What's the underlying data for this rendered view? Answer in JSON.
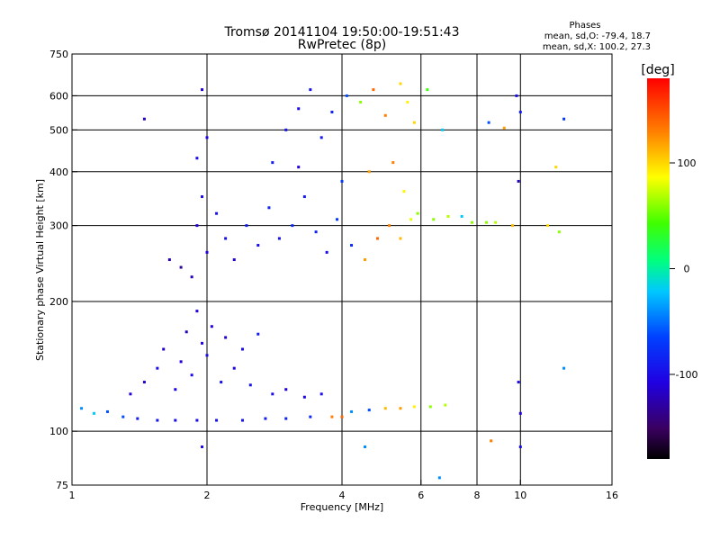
{
  "chart_data": {
    "type": "scatter",
    "title": "Tromsø 20141104 19:50:00-19:51:43",
    "subtitle": "RwPretec (8p)",
    "legend_title": "Phases",
    "legend_lines": [
      "mean, sd,O: -79.4, 18.7",
      "mean, sd,X: 100.2, 27.3"
    ],
    "xlabel": "Frequency [MHz]",
    "ylabel": "Stationary phase Virtual Height [km]",
    "x_scale": "log",
    "y_scale": "log",
    "xlim": [
      1,
      16
    ],
    "ylim": [
      75,
      750
    ],
    "x_ticks": [
      1,
      2,
      4,
      6,
      8,
      10,
      16
    ],
    "x_tick_labels": [
      "1",
      "2",
      "4",
      "6",
      "8",
      "10",
      "16"
    ],
    "x_gridlines": [
      2,
      4,
      6,
      8,
      10
    ],
    "y_ticks": [
      75,
      100,
      200,
      300,
      400,
      500,
      600,
      750
    ],
    "y_tick_labels": [
      "75",
      "100",
      "200",
      "300",
      "400",
      "500",
      "600",
      "750"
    ],
    "y_gridlines": [
      100,
      200,
      300,
      400,
      500,
      600
    ],
    "grid": true,
    "colorbar": {
      "label": "[deg]",
      "range": [
        -180,
        180
      ],
      "ticks": [
        100,
        0,
        -100
      ],
      "tick_labels": [
        "100",
        "0",
        "-100"
      ]
    },
    "series": [
      {
        "points": [
          {
            "x": 1.05,
            "y": 113,
            "p": -40
          },
          {
            "x": 1.12,
            "y": 110,
            "p": -20
          },
          {
            "x": 1.2,
            "y": 111,
            "p": -60
          },
          {
            "x": 1.3,
            "y": 108,
            "p": -60
          },
          {
            "x": 1.4,
            "y": 107,
            "p": -90
          },
          {
            "x": 1.55,
            "y": 106,
            "p": -95
          },
          {
            "x": 1.7,
            "y": 106,
            "p": -100
          },
          {
            "x": 1.9,
            "y": 106,
            "p": -100
          },
          {
            "x": 2.1,
            "y": 106,
            "p": -95
          },
          {
            "x": 2.4,
            "y": 106,
            "p": -95
          },
          {
            "x": 2.7,
            "y": 107,
            "p": -90
          },
          {
            "x": 3.0,
            "y": 107,
            "p": -85
          },
          {
            "x": 3.4,
            "y": 108,
            "p": -80
          },
          {
            "x": 3.8,
            "y": 108,
            "p": 130
          },
          {
            "x": 4.0,
            "y": 108,
            "p": 140
          },
          {
            "x": 4.2,
            "y": 111,
            "p": -40
          },
          {
            "x": 4.6,
            "y": 112,
            "p": -60
          },
          {
            "x": 5.0,
            "y": 113,
            "p": 110
          },
          {
            "x": 5.4,
            "y": 113,
            "p": 120
          },
          {
            "x": 5.8,
            "y": 114,
            "p": 90
          },
          {
            "x": 6.3,
            "y": 114,
            "p": 60
          },
          {
            "x": 6.8,
            "y": 115,
            "p": 70
          },
          {
            "x": 1.35,
            "y": 122,
            "p": -110
          },
          {
            "x": 1.45,
            "y": 130,
            "p": -115
          },
          {
            "x": 1.55,
            "y": 140,
            "p": -100
          },
          {
            "x": 1.6,
            "y": 155,
            "p": -115
          },
          {
            "x": 1.7,
            "y": 125,
            "p": -105
          },
          {
            "x": 1.75,
            "y": 145,
            "p": -110
          },
          {
            "x": 1.8,
            "y": 170,
            "p": -120
          },
          {
            "x": 1.85,
            "y": 135,
            "p": -100
          },
          {
            "x": 1.9,
            "y": 190,
            "p": -110
          },
          {
            "x": 1.95,
            "y": 160,
            "p": -105
          },
          {
            "x": 2.0,
            "y": 150,
            "p": -100
          },
          {
            "x": 2.05,
            "y": 175,
            "p": -110
          },
          {
            "x": 2.15,
            "y": 130,
            "p": -95
          },
          {
            "x": 2.2,
            "y": 165,
            "p": -115
          },
          {
            "x": 2.3,
            "y": 140,
            "p": -105
          },
          {
            "x": 2.4,
            "y": 155,
            "p": -100
          },
          {
            "x": 2.5,
            "y": 128,
            "p": -95
          },
          {
            "x": 2.6,
            "y": 168,
            "p": -90
          },
          {
            "x": 2.8,
            "y": 122,
            "p": -100
          },
          {
            "x": 3.0,
            "y": 125,
            "p": -110
          },
          {
            "x": 3.3,
            "y": 120,
            "p": -105
          },
          {
            "x": 3.6,
            "y": 122,
            "p": -100
          },
          {
            "x": 1.65,
            "y": 250,
            "p": -125
          },
          {
            "x": 1.75,
            "y": 240,
            "p": -130
          },
          {
            "x": 1.85,
            "y": 228,
            "p": -120
          },
          {
            "x": 1.9,
            "y": 300,
            "p": -110
          },
          {
            "x": 1.95,
            "y": 350,
            "p": -100
          },
          {
            "x": 2.0,
            "y": 260,
            "p": -110
          },
          {
            "x": 2.1,
            "y": 320,
            "p": -95
          },
          {
            "x": 2.2,
            "y": 280,
            "p": -100
          },
          {
            "x": 2.3,
            "y": 250,
            "p": -115
          },
          {
            "x": 2.45,
            "y": 300,
            "p": -90
          },
          {
            "x": 2.6,
            "y": 270,
            "p": -100
          },
          {
            "x": 2.75,
            "y": 330,
            "p": -85
          },
          {
            "x": 2.9,
            "y": 280,
            "p": -95
          },
          {
            "x": 3.1,
            "y": 300,
            "p": -80
          },
          {
            "x": 3.3,
            "y": 350,
            "p": -90
          },
          {
            "x": 3.5,
            "y": 290,
            "p": -85
          },
          {
            "x": 3.7,
            "y": 260,
            "p": -100
          },
          {
            "x": 3.9,
            "y": 310,
            "p": -70
          },
          {
            "x": 4.2,
            "y": 270,
            "p": -80
          },
          {
            "x": 4.5,
            "y": 250,
            "p": 120
          },
          {
            "x": 4.8,
            "y": 280,
            "p": 140
          },
          {
            "x": 5.1,
            "y": 300,
            "p": 130
          },
          {
            "x": 5.4,
            "y": 280,
            "p": 110
          },
          {
            "x": 5.7,
            "y": 310,
            "p": 80
          },
          {
            "x": 5.9,
            "y": 320,
            "p": 60
          },
          {
            "x": 6.4,
            "y": 310,
            "p": 60
          },
          {
            "x": 6.9,
            "y": 315,
            "p": 70
          },
          {
            "x": 7.4,
            "y": 315,
            "p": -20
          },
          {
            "x": 7.8,
            "y": 305,
            "p": 60
          },
          {
            "x": 8.4,
            "y": 305,
            "p": 60
          },
          {
            "x": 8.8,
            "y": 305,
            "p": 70
          },
          {
            "x": 9.6,
            "y": 300,
            "p": 110
          },
          {
            "x": 1.9,
            "y": 430,
            "p": -100
          },
          {
            "x": 2.0,
            "y": 480,
            "p": -105
          },
          {
            "x": 2.8,
            "y": 420,
            "p": -90
          },
          {
            "x": 3.0,
            "y": 500,
            "p": -95
          },
          {
            "x": 3.2,
            "y": 560,
            "p": -100
          },
          {
            "x": 3.4,
            "y": 620,
            "p": -95
          },
          {
            "x": 3.6,
            "y": 480,
            "p": -90
          },
          {
            "x": 3.8,
            "y": 550,
            "p": -85
          },
          {
            "x": 4.1,
            "y": 600,
            "p": -60
          },
          {
            "x": 4.4,
            "y": 580,
            "p": 60
          },
          {
            "x": 4.7,
            "y": 620,
            "p": 140
          },
          {
            "x": 5.0,
            "y": 540,
            "p": 130
          },
          {
            "x": 5.4,
            "y": 640,
            "p": 100
          },
          {
            "x": 5.6,
            "y": 580,
            "p": 90
          },
          {
            "x": 5.8,
            "y": 520,
            "p": 100
          },
          {
            "x": 6.2,
            "y": 620,
            "p": 40
          },
          {
            "x": 6.7,
            "y": 500,
            "p": -20
          },
          {
            "x": 3.2,
            "y": 410,
            "p": -110
          },
          {
            "x": 4.0,
            "y": 380,
            "p": -70
          },
          {
            "x": 4.6,
            "y": 400,
            "p": 120
          },
          {
            "x": 5.2,
            "y": 420,
            "p": 130
          },
          {
            "x": 5.5,
            "y": 360,
            "p": 90
          },
          {
            "x": 9.9,
            "y": 380,
            "p": -120
          },
          {
            "x": 9.8,
            "y": 600,
            "p": -100
          },
          {
            "x": 10.0,
            "y": 550,
            "p": -90
          },
          {
            "x": 12.5,
            "y": 530,
            "p": -70
          },
          {
            "x": 1.45,
            "y": 530,
            "p": -120
          },
          {
            "x": 1.95,
            "y": 620,
            "p": -110
          },
          {
            "x": 1.95,
            "y": 92,
            "p": -100
          },
          {
            "x": 4.5,
            "y": 92,
            "p": -40
          },
          {
            "x": 8.6,
            "y": 95,
            "p": 130
          },
          {
            "x": 10,
            "y": 92,
            "p": -100
          },
          {
            "x": 12.5,
            "y": 140,
            "p": -40
          },
          {
            "x": 9.9,
            "y": 130,
            "p": -100
          },
          {
            "x": 10,
            "y": 110,
            "p": -110
          },
          {
            "x": 12.2,
            "y": 290,
            "p": 60
          },
          {
            "x": 11.5,
            "y": 300,
            "p": 100
          },
          {
            "x": 6.6,
            "y": 78,
            "p": -40
          },
          {
            "x": 8.5,
            "y": 520,
            "p": -60
          },
          {
            "x": 9.2,
            "y": 505,
            "p": 120
          },
          {
            "x": 12,
            "y": 410,
            "p": 100
          }
        ]
      }
    ]
  }
}
